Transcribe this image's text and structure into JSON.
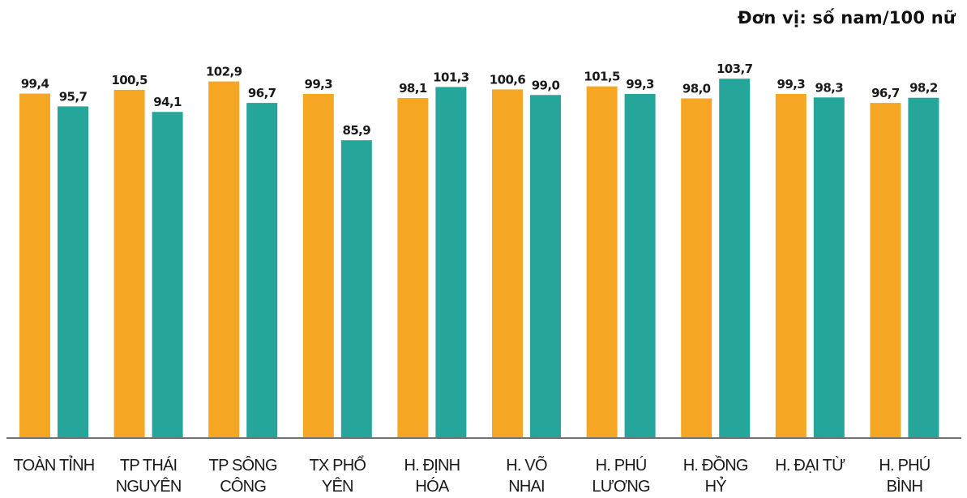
{
  "unit_label": "Đơn vị: số nam/100 nữ",
  "colors": {
    "series_a": "#F5A623",
    "series_b": "#26A69A",
    "axis": "#444444",
    "text": "#1a1a1a"
  },
  "chart_data": {
    "type": "bar",
    "categories": [
      [
        "TOÀN TỈNH"
      ],
      [
        "TP THÁI",
        "NGUYÊN"
      ],
      [
        "TP SÔNG",
        "CÔNG"
      ],
      [
        "TX PHỔ",
        "YÊN"
      ],
      [
        "H. ĐỊNH",
        "HÓA"
      ],
      [
        "H. VÕ",
        "NHAI"
      ],
      [
        "H. PHÚ",
        "LƯƠNG"
      ],
      [
        "H. ĐỒNG",
        "HỶ"
      ],
      [
        "H. ĐẠI TỪ"
      ],
      [
        "H. PHÚ",
        "BÌNH"
      ]
    ],
    "series": [
      {
        "values": [
          99.4,
          100.5,
          102.9,
          99.3,
          98.1,
          100.6,
          101.5,
          98.0,
          99.3,
          96.7
        ],
        "labels": [
          "99,4",
          "100,5",
          "102,9",
          "99,3",
          "98,1",
          "100,6",
          "101,5",
          "98,0",
          "99,3",
          "96,7"
        ]
      },
      {
        "values": [
          95.7,
          94.1,
          96.7,
          85.9,
          101.3,
          99.0,
          99.3,
          103.7,
          98.3,
          98.2
        ],
        "labels": [
          "95,7",
          "94,1",
          "96,7",
          "85,9",
          "101,3",
          "99,0",
          "99,3",
          "103,7",
          "98,3",
          "98,2"
        ]
      }
    ],
    "title": "",
    "xlabel": "",
    "ylabel": "",
    "grid": false,
    "legend": "none"
  }
}
